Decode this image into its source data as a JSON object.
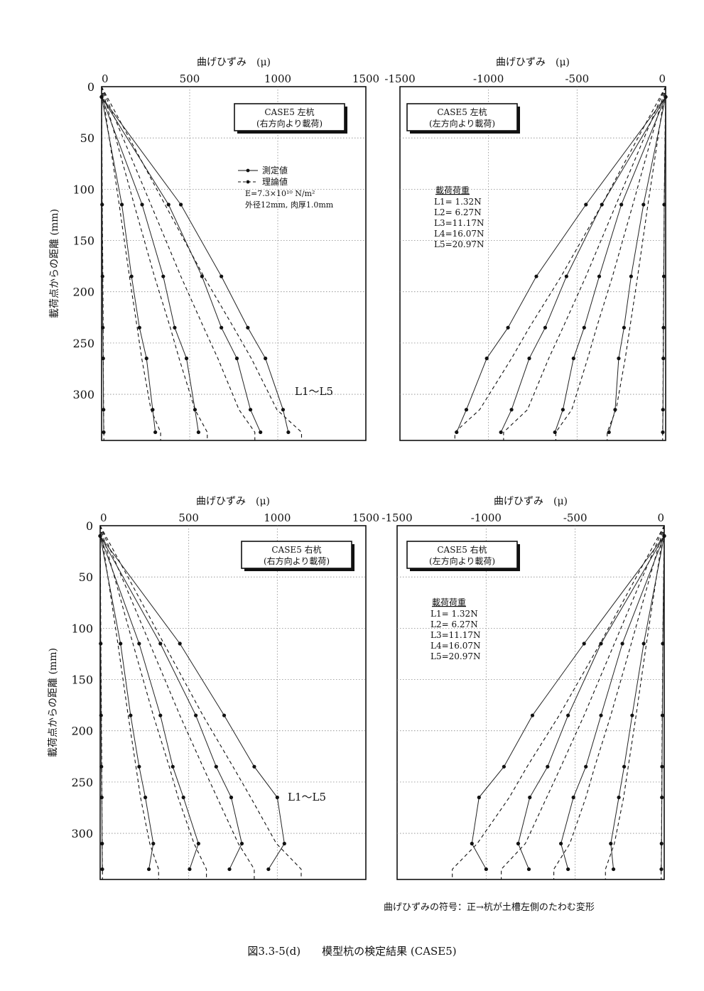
{
  "chart_data": [
    {
      "type": "line",
      "title": "CASE5 左杭",
      "subtitle": "(右方向より載荷)",
      "xlabel": "曲げひずみ　(μ)",
      "ylabel": "載荷点からの距離 (mm)",
      "xlim": [
        0,
        1500
      ],
      "ylim": [
        0,
        345
      ],
      "y_reversed": true,
      "xticks": [
        "0",
        "500",
        "1000",
        "1500"
      ],
      "yticks": [
        "0",
        "50",
        "100",
        "150",
        "200",
        "250",
        "300"
      ],
      "grid": true,
      "legend": {
        "measured": "測定値",
        "theory": "理論値"
      },
      "material_note": [
        "E=7.3×10¹⁰ N/m²",
        "外径12mm, 肉厚1.0mm"
      ],
      "annotation": "L1～L5",
      "depths": [
        10,
        115,
        185,
        235,
        265,
        315,
        337
      ],
      "series": [
        {
          "measured": [
            0,
            3,
            5,
            7,
            9,
            11,
            12
          ],
          "theory": [
            0,
            4,
            7,
            9,
            10,
            11,
            13
          ]
        },
        {
          "measured": [
            0,
            115,
            170,
            215,
            255,
            290,
            305
          ],
          "theory": [
            0,
            100,
            158,
            202,
            228,
            280,
            335
          ]
        },
        {
          "measured": [
            0,
            230,
            350,
            415,
            482,
            530,
            550
          ],
          "theory": [
            0,
            185,
            300,
            390,
            440,
            530,
            600
          ]
        },
        {
          "measured": [
            0,
            380,
            570,
            680,
            768,
            845,
            902
          ],
          "theory": [
            0,
            280,
            450,
            580,
            660,
            780,
            870
          ]
        },
        {
          "measured": [
            0,
            450,
            680,
            830,
            930,
            1030,
            1060
          ],
          "theory": [
            0,
            360,
            580,
            750,
            850,
            995,
            1135
          ]
        }
      ]
    },
    {
      "type": "line",
      "title": "CASE5 左杭",
      "subtitle": "(左方向より載荷)",
      "xlabel": "曲げひずみ　(μ)",
      "xlim": [
        -1500,
        0
      ],
      "ylim": [
        0,
        345
      ],
      "y_reversed": true,
      "xticks": [
        "-1500",
        "-1000",
        "-500",
        "0"
      ],
      "grid": true,
      "load_title": "載荷荷重",
      "loads": [
        "L1= 1.32N",
        "L2= 6.27N",
        "L3=11.17N",
        "L4=16.07N",
        "L5=20.97N"
      ],
      "depths": [
        10,
        115,
        185,
        235,
        265,
        315,
        337
      ],
      "series": [
        {
          "measured": [
            0,
            -8,
            -10,
            -12,
            -13,
            -15,
            -16
          ],
          "theory": [
            0,
            -8,
            -11,
            -13,
            -14,
            -15,
            -17
          ]
        },
        {
          "measured": [
            0,
            -125,
            -195,
            -235,
            -265,
            -285,
            -320
          ],
          "theory": [
            0,
            -100,
            -158,
            -202,
            -228,
            -280,
            -330
          ]
        },
        {
          "measured": [
            0,
            -250,
            -375,
            -460,
            -520,
            -580,
            -625
          ],
          "theory": [
            0,
            -185,
            -300,
            -390,
            -440,
            -530,
            -620
          ]
        },
        {
          "measured": [
            0,
            -360,
            -560,
            -680,
            -770,
            -870,
            -930
          ],
          "theory": [
            0,
            -280,
            -450,
            -580,
            -660,
            -780,
            -915
          ]
        },
        {
          "measured": [
            0,
            -450,
            -730,
            -890,
            -1010,
            -1125,
            -1180
          ],
          "theory": [
            0,
            -360,
            -590,
            -770,
            -870,
            -1050,
            -1190
          ]
        }
      ]
    },
    {
      "type": "line",
      "title": "CASE5 右杭",
      "subtitle": "(右方向より載荷)",
      "xlabel": "曲げひずみ　(μ)",
      "ylabel": "載荷点からの距離 (mm)",
      "xlim": [
        0,
        1500
      ],
      "ylim": [
        0,
        345
      ],
      "y_reversed": true,
      "xticks": [
        "0",
        "500",
        "1000",
        "1500"
      ],
      "yticks": [
        "0",
        "50",
        "100",
        "150",
        "200",
        "250",
        "300"
      ],
      "grid": true,
      "annotation": "L1～L5",
      "depths": [
        10,
        115,
        185,
        235,
        265,
        310,
        335
      ],
      "series": [
        {
          "measured": [
            0,
            3,
            5,
            7,
            9,
            11,
            12
          ],
          "theory": [
            0,
            4,
            7,
            9,
            10,
            11,
            13
          ]
        },
        {
          "measured": [
            0,
            115,
            172,
            220,
            255,
            300,
            275
          ],
          "theory": [
            0,
            100,
            158,
            202,
            228,
            280,
            330
          ]
        },
        {
          "measured": [
            0,
            220,
            340,
            410,
            470,
            555,
            505
          ],
          "theory": [
            0,
            185,
            300,
            390,
            440,
            530,
            600
          ]
        },
        {
          "measured": [
            0,
            340,
            540,
            655,
            740,
            800,
            730
          ],
          "theory": [
            0,
            280,
            450,
            580,
            660,
            780,
            870
          ]
        },
        {
          "measured": [
            0,
            450,
            700,
            870,
            1000,
            1040,
            950
          ],
          "theory": [
            0,
            360,
            580,
            750,
            850,
            995,
            1135
          ]
        }
      ]
    },
    {
      "type": "line",
      "title": "CASE5 右杭",
      "subtitle": "(左方向より載荷)",
      "xlabel": "曲げひずみ　(μ)",
      "xlim": [
        -1500,
        0
      ],
      "ylim": [
        0,
        345
      ],
      "y_reversed": true,
      "xticks": [
        "-1500",
        "-1000",
        "-500",
        "0"
      ],
      "grid": true,
      "load_title": "載荷荷重",
      "loads": [
        "L1= 1.32N",
        "L2= 6.27N",
        "L3=11.17N",
        "L4=16.07N",
        "L5=20.97N"
      ],
      "depths": [
        10,
        115,
        185,
        235,
        265,
        310,
        335
      ],
      "series": [
        {
          "measured": [
            0,
            -8,
            -10,
            -12,
            -13,
            -15,
            -16
          ],
          "theory": [
            0,
            -8,
            -11,
            -13,
            -14,
            -15,
            -17
          ]
        },
        {
          "measured": [
            0,
            -115,
            -180,
            -225,
            -255,
            -300,
            -285
          ],
          "theory": [
            0,
            -100,
            -158,
            -202,
            -228,
            -280,
            -330
          ]
        },
        {
          "measured": [
            0,
            -235,
            -355,
            -440,
            -510,
            -580,
            -540
          ],
          "theory": [
            0,
            -185,
            -300,
            -390,
            -440,
            -530,
            -620
          ]
        },
        {
          "measured": [
            0,
            -355,
            -540,
            -655,
            -755,
            -820,
            -760
          ],
          "theory": [
            0,
            -280,
            -450,
            -580,
            -660,
            -780,
            -915
          ]
        },
        {
          "measured": [
            0,
            -450,
            -740,
            -900,
            -1040,
            -1080,
            -1000
          ],
          "theory": [
            0,
            -360,
            -590,
            -770,
            -870,
            -1050,
            -1190
          ]
        }
      ]
    }
  ],
  "footer_note": "曲げひずみの符号：正→杭が土槽左側のたわむ変形",
  "figure_caption": "図3.3-5(d)　　模型杭の検定結果 (CASE5)"
}
